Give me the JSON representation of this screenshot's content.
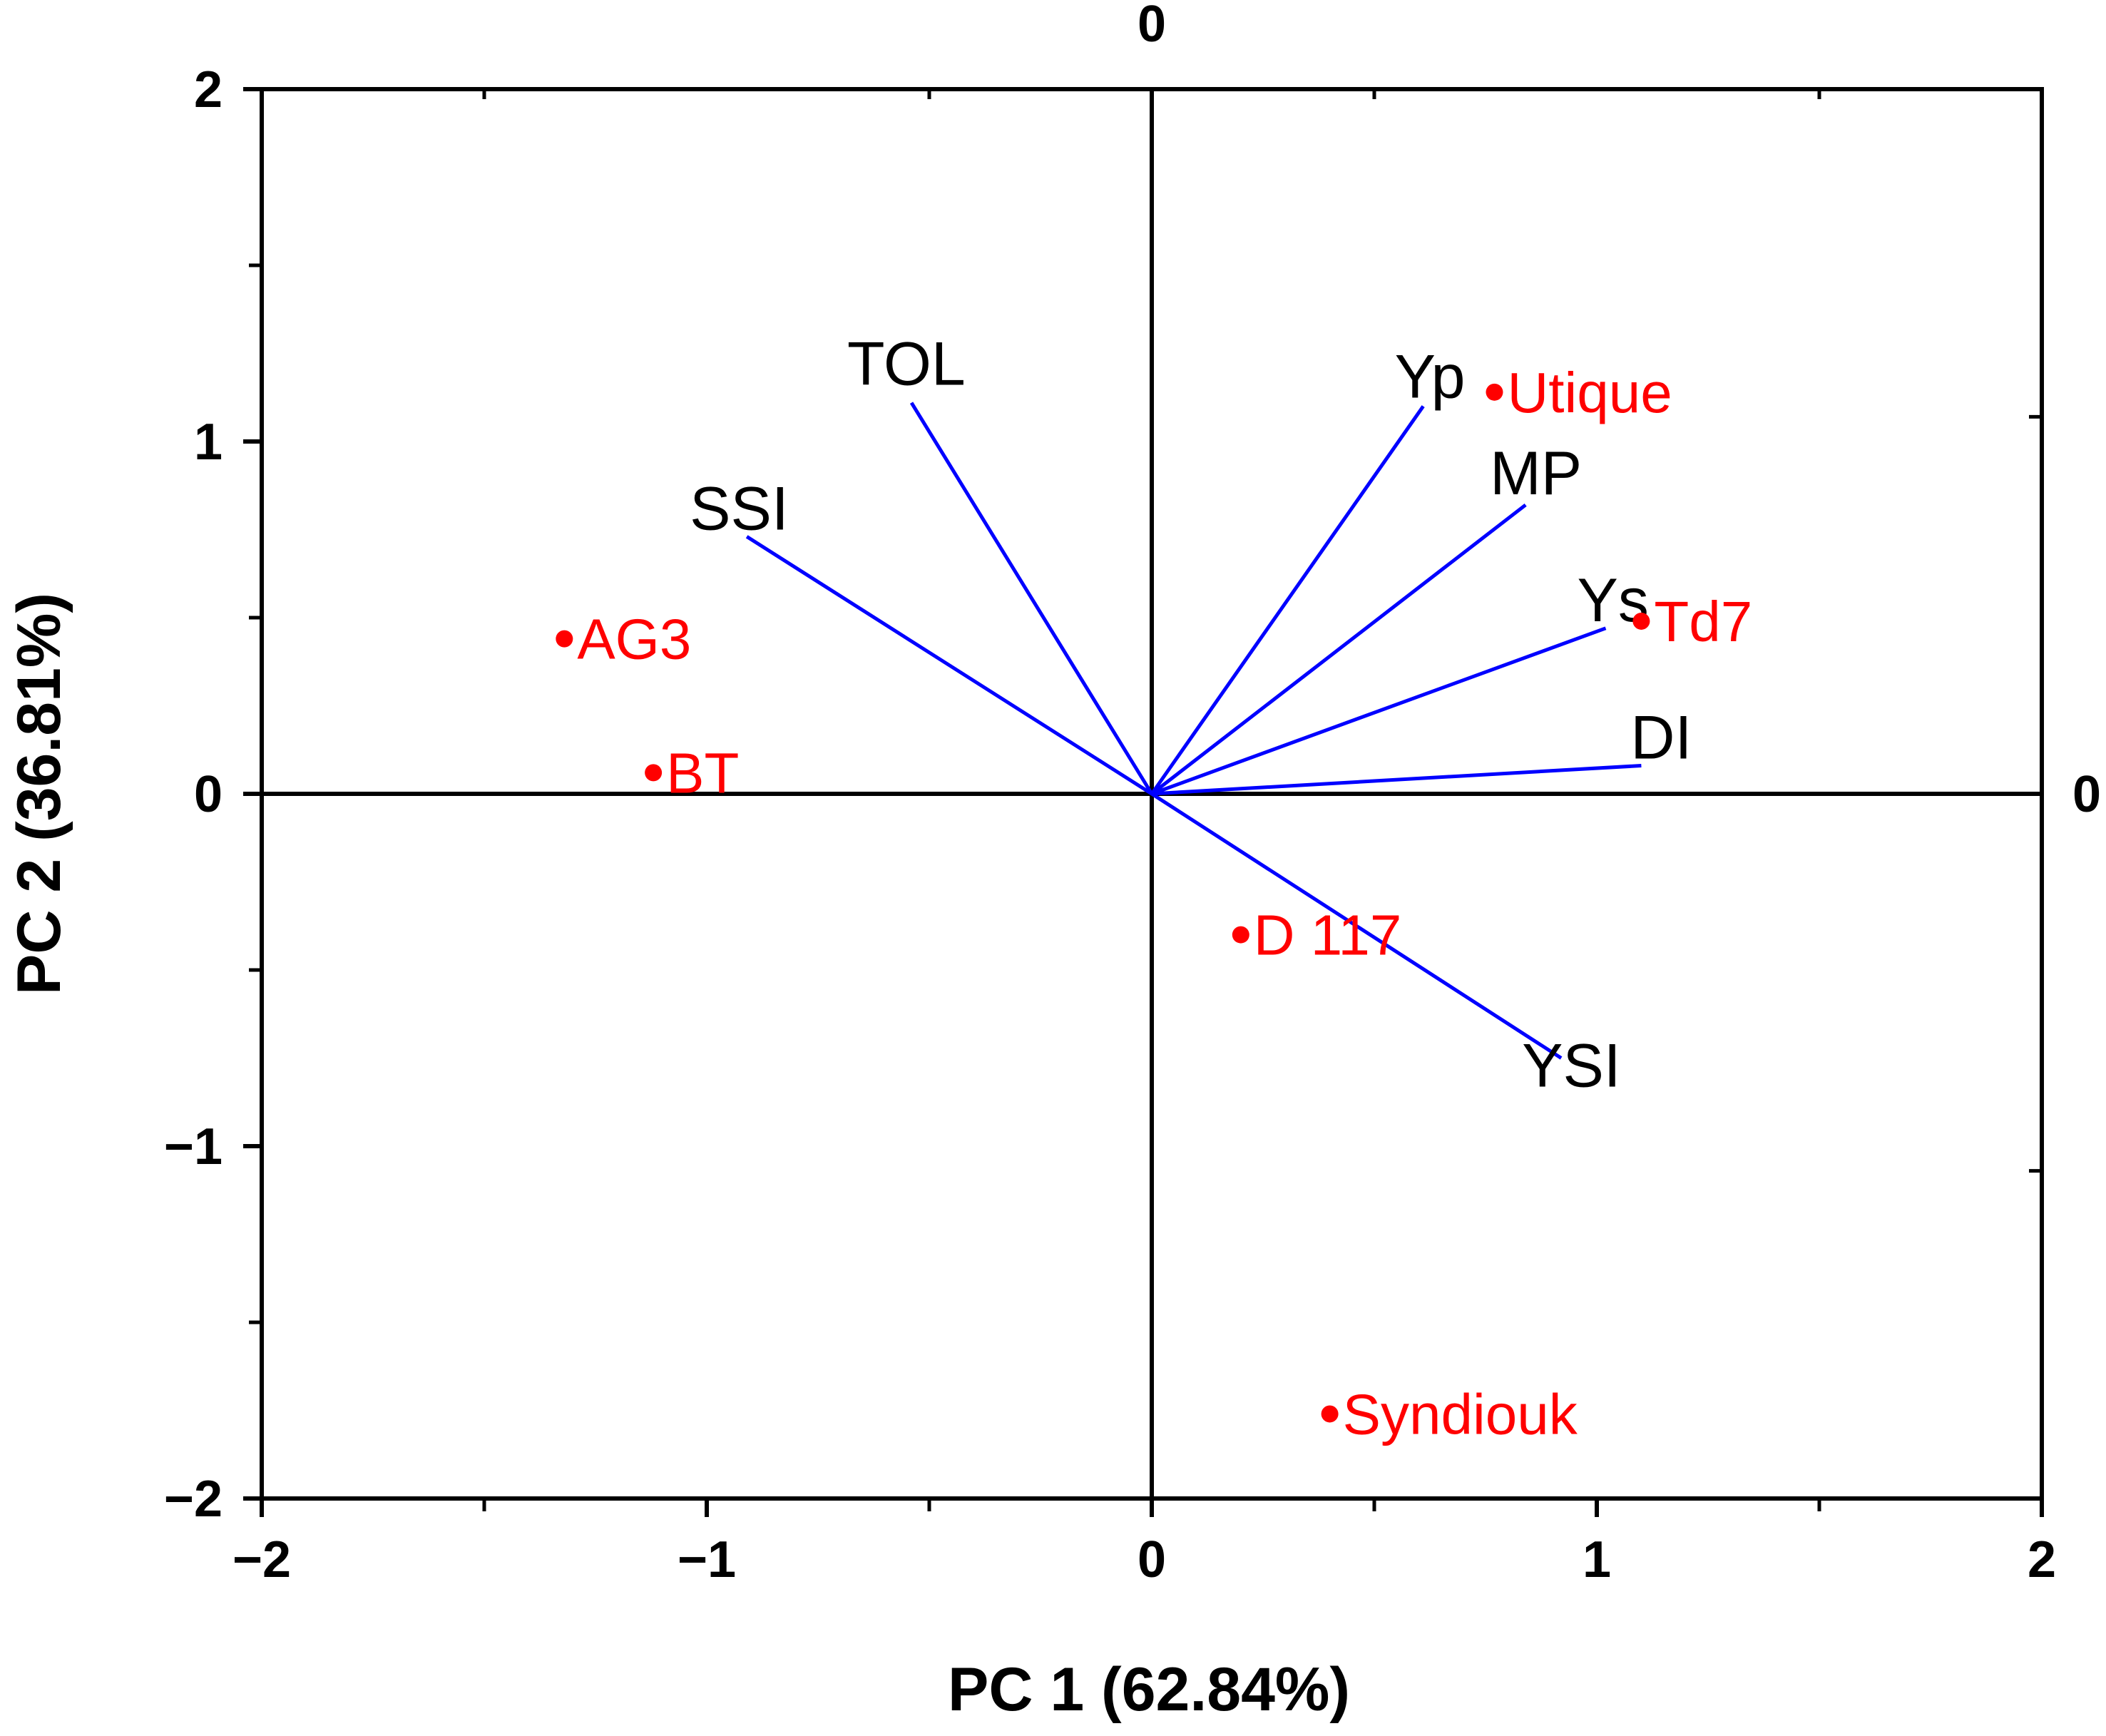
{
  "chart_data": {
    "type": "scatter",
    "subtype": "pca-biplot",
    "title": "",
    "xlabel": "PC 1 (62.84%)",
    "ylabel": "PC 2 (36.81%)",
    "xlim": [
      -2,
      2
    ],
    "ylim": [
      -2,
      2
    ],
    "x_ticks": [
      -2,
      -1,
      0,
      1,
      2
    ],
    "y_ticks": [
      -2,
      -1,
      0,
      1,
      2
    ],
    "x_tick_labels": [
      "−2",
      "−1",
      "0",
      "1",
      "2"
    ],
    "y_tick_labels": [
      "−2",
      "−1",
      "0",
      "1",
      "2"
    ],
    "top_axis_label": "0",
    "right_axis_label": "0",
    "grid": false,
    "colors": {
      "vectors": "#0000ff",
      "genotypes": "#ff0000",
      "axes": "#000000"
    },
    "variables": [
      {
        "name": "Yp",
        "x": 0.61,
        "y": 1.1
      },
      {
        "name": "MP",
        "x": 0.84,
        "y": 0.82
      },
      {
        "name": "Ys",
        "x": 1.02,
        "y": 0.47
      },
      {
        "name": "DI",
        "x": 1.1,
        "y": 0.08
      },
      {
        "name": "YSI",
        "x": 0.92,
        "y": -0.75
      },
      {
        "name": "TOL",
        "x": -0.54,
        "y": 1.11
      },
      {
        "name": "SSI",
        "x": -0.91,
        "y": 0.73
      }
    ],
    "genotypes": [
      {
        "name": "Utique",
        "x": 0.77,
        "y": 1.14
      },
      {
        "name": "Td7",
        "x": 1.1,
        "y": 0.49
      },
      {
        "name": "AG3",
        "x": -1.32,
        "y": 0.44
      },
      {
        "name": "BT",
        "x": -1.12,
        "y": 0.06
      },
      {
        "name": "D 117",
        "x": 0.2,
        "y": -0.4
      },
      {
        "name": "Syndiouk",
        "x": 0.4,
        "y": -1.76
      }
    ]
  }
}
